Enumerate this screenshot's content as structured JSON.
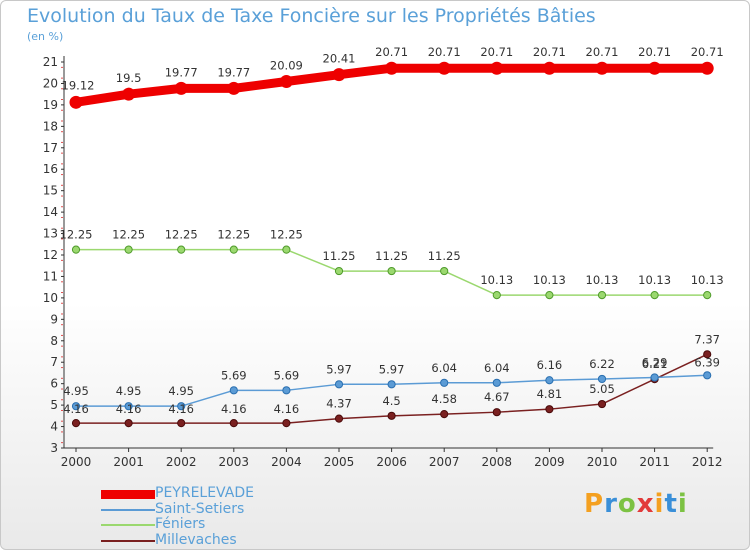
{
  "header": {
    "title": "Evolution du Taux de Taxe Foncière sur les Propriétés Bâties",
    "unit": "(en %)"
  },
  "logo": {
    "letters": [
      "P",
      "r",
      "o",
      "x",
      "i",
      "t",
      "i"
    ],
    "colors": [
      "#f4a020",
      "#3a8fd8",
      "#7cc243",
      "#e23a3a",
      "#f4a020",
      "#3a8fd8",
      "#7cc243"
    ]
  },
  "chart_data": {
    "type": "line",
    "x": [
      "2000",
      "2001",
      "2002",
      "2003",
      "2004",
      "2005",
      "2006",
      "2007",
      "2008",
      "2009",
      "2010",
      "2011",
      "2012"
    ],
    "ylim": [
      3,
      21
    ],
    "yticks": [
      "3",
      "4",
      "5",
      "6",
      "7",
      "8",
      "9",
      "10",
      "11",
      "12",
      "13",
      "14",
      "15",
      "16",
      "17",
      "18",
      "19",
      "20",
      "21"
    ],
    "grid": false,
    "legend_position": "bottom-left",
    "series": [
      {
        "name": "PEYRELEVADE",
        "color": "#ee0000",
        "values": [
          19.12,
          19.5,
          19.77,
          19.77,
          20.09,
          20.41,
          20.71,
          20.71,
          20.71,
          20.71,
          20.71,
          20.71,
          20.71
        ],
        "labels": [
          "19.12",
          "19.5",
          "19.77",
          "19.77",
          "20.09",
          "20.41",
          "20.71",
          "20.71",
          "20.71",
          "20.71",
          "20.71",
          "20.71",
          "20.71"
        ]
      },
      {
        "name": "Saint-Setiers",
        "color": "#5b9bd5",
        "values": [
          4.95,
          4.95,
          4.95,
          5.69,
          5.69,
          5.97,
          5.97,
          6.04,
          6.04,
          6.16,
          6.22,
          6.29,
          6.39
        ],
        "labels": [
          "4.95",
          "4.95",
          "4.95",
          "5.69",
          "5.69",
          "5.97",
          "5.97",
          "6.04",
          "6.04",
          "6.16",
          "6.22",
          "6.29",
          "6.39"
        ]
      },
      {
        "name": "Féniers",
        "color": "#9bd86f",
        "values": [
          12.25,
          12.25,
          12.25,
          12.25,
          12.25,
          11.25,
          11.25,
          11.25,
          10.13,
          10.13,
          10.13,
          10.13,
          10.13
        ],
        "labels": [
          "12.25",
          "12.25",
          "12.25",
          "12.25",
          "12.25",
          "11.25",
          "11.25",
          "11.25",
          "10.13",
          "10.13",
          "10.13",
          "10.13",
          "10.13"
        ]
      },
      {
        "name": "Millevaches",
        "color": "#7a2020",
        "values": [
          4.16,
          4.16,
          4.16,
          4.16,
          4.16,
          4.37,
          4.5,
          4.58,
          4.67,
          4.81,
          5.05,
          6.21,
          7.37
        ],
        "labels": [
          "4.16",
          "4.16",
          "4.16",
          "4.16",
          "4.16",
          "4.37",
          "4.5",
          "4.58",
          "4.67",
          "4.81",
          "5.05",
          "6.21",
          "7.37"
        ]
      }
    ]
  }
}
